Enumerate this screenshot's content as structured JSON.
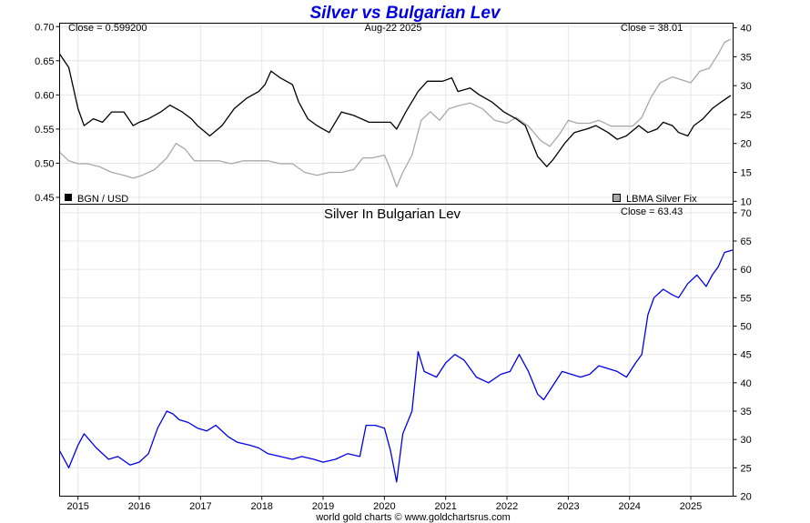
{
  "title": "Silver vs Bulgarian Lev",
  "credit": "world gold charts © www.goldchartsrus.com",
  "chart_data": [
    {
      "type": "line",
      "panel": "top",
      "date_label": "Aug-22  2025",
      "left_close": "Close = 0.599200",
      "right_close": "Close = 38.01",
      "left_legend": "BGN / USD",
      "right_legend": "LBMA Silver Fix",
      "left_axis": {
        "ylim": [
          0.44,
          0.705
        ],
        "ticks": [
          0.45,
          0.5,
          0.55,
          0.6,
          0.65,
          0.7
        ],
        "tick_labels": [
          "0.45",
          "0.50",
          "0.55",
          "0.60",
          "0.65",
          "0.70"
        ]
      },
      "right_axis": {
        "ylim": [
          9.5,
          40.8
        ],
        "ticks": [
          10,
          15,
          20,
          25,
          30,
          35,
          40
        ],
        "tick_labels": [
          "10",
          "15",
          "20",
          "25",
          "30",
          "35",
          "40"
        ]
      },
      "x_range": [
        2014.7,
        2025.69
      ],
      "x_ticks": [
        2015,
        2016,
        2017,
        2018,
        2019,
        2020,
        2021,
        2022,
        2023,
        2024,
        2025
      ],
      "x_tick_labels": [
        "2015",
        "2016",
        "2017",
        "2018",
        "2019",
        "2020",
        "2021",
        "2022",
        "2023",
        "2024",
        "2025"
      ],
      "grid": true,
      "series": [
        {
          "name": "BGN / USD",
          "axis": "left",
          "color": "#000000",
          "x": [
            2014.7,
            2014.85,
            2015.0,
            2015.1,
            2015.25,
            2015.4,
            2015.55,
            2015.75,
            2015.9,
            2016.0,
            2016.15,
            2016.35,
            2016.5,
            2016.7,
            2016.85,
            2016.95,
            2017.15,
            2017.35,
            2017.55,
            2017.75,
            2017.95,
            2018.05,
            2018.15,
            2018.3,
            2018.5,
            2018.6,
            2018.75,
            2018.9,
            2019.0,
            2019.1,
            2019.3,
            2019.5,
            2019.75,
            2019.95,
            2020.1,
            2020.2,
            2020.35,
            2020.55,
            2020.7,
            2020.95,
            2021.1,
            2021.2,
            2021.4,
            2021.55,
            2021.75,
            2021.95,
            2022.15,
            2022.3,
            2022.5,
            2022.65,
            2022.75,
            2022.95,
            2023.1,
            2023.3,
            2023.45,
            2023.65,
            2023.8,
            2023.95,
            2024.15,
            2024.3,
            2024.45,
            2024.55,
            2024.7,
            2024.8,
            2024.95,
            2025.05,
            2025.2,
            2025.35,
            2025.5,
            2025.65
          ],
          "y": [
            0.66,
            0.64,
            0.58,
            0.555,
            0.565,
            0.56,
            0.575,
            0.575,
            0.555,
            0.56,
            0.565,
            0.575,
            0.585,
            0.575,
            0.565,
            0.555,
            0.54,
            0.555,
            0.58,
            0.595,
            0.605,
            0.615,
            0.635,
            0.625,
            0.615,
            0.59,
            0.565,
            0.555,
            0.55,
            0.545,
            0.575,
            0.57,
            0.56,
            0.56,
            0.56,
            0.55,
            0.575,
            0.605,
            0.62,
            0.62,
            0.625,
            0.605,
            0.61,
            0.6,
            0.59,
            0.575,
            0.565,
            0.555,
            0.51,
            0.495,
            0.505,
            0.53,
            0.545,
            0.55,
            0.555,
            0.545,
            0.535,
            0.54,
            0.555,
            0.545,
            0.55,
            0.56,
            0.555,
            0.545,
            0.54,
            0.555,
            0.565,
            0.58,
            0.59,
            0.599
          ]
        },
        {
          "name": "LBMA Silver Fix",
          "axis": "right",
          "color": "#a8a8a8",
          "x": [
            2014.7,
            2014.85,
            2015.0,
            2015.15,
            2015.35,
            2015.55,
            2015.75,
            2015.9,
            2016.05,
            2016.25,
            2016.45,
            2016.6,
            2016.75,
            2016.9,
            2017.1,
            2017.3,
            2017.5,
            2017.7,
            2017.9,
            2018.1,
            2018.3,
            2018.5,
            2018.7,
            2018.9,
            2019.1,
            2019.3,
            2019.5,
            2019.65,
            2019.8,
            2020.0,
            2020.1,
            2020.2,
            2020.3,
            2020.45,
            2020.6,
            2020.75,
            2020.9,
            2021.05,
            2021.2,
            2021.4,
            2021.6,
            2021.8,
            2022.0,
            2022.15,
            2022.35,
            2022.55,
            2022.7,
            2022.85,
            2023.0,
            2023.15,
            2023.35,
            2023.5,
            2023.7,
            2023.9,
            2024.05,
            2024.2,
            2024.35,
            2024.5,
            2024.7,
            2024.85,
            2025.0,
            2025.15,
            2025.3,
            2025.45,
            2025.55,
            2025.65
          ],
          "y": [
            18.5,
            17.0,
            16.5,
            16.5,
            16.0,
            15.0,
            14.5,
            14.0,
            14.5,
            15.5,
            17.5,
            20.0,
            19.0,
            17.0,
            17.0,
            17.0,
            16.5,
            17.0,
            17.0,
            17.0,
            16.5,
            16.5,
            15.0,
            14.5,
            15.0,
            15.0,
            15.5,
            17.5,
            17.5,
            18.0,
            15.5,
            12.5,
            15.0,
            18.0,
            24.0,
            25.5,
            24.0,
            26.0,
            26.5,
            27.0,
            26.0,
            24.0,
            23.5,
            24.5,
            23.0,
            20.5,
            19.5,
            21.5,
            24.0,
            23.5,
            23.5,
            24.0,
            23.0,
            23.0,
            23.0,
            24.5,
            28.0,
            30.5,
            31.5,
            31.0,
            30.5,
            32.5,
            33.0,
            35.5,
            37.5,
            38.01
          ]
        }
      ]
    },
    {
      "type": "line",
      "panel": "bottom",
      "title": "Silver In Bulgarian Lev",
      "right_close": "Close = 63.43",
      "right_axis": {
        "ylim": [
          20,
          71.5
        ],
        "ticks": [
          20,
          25,
          30,
          35,
          40,
          45,
          50,
          55,
          60,
          65,
          70
        ],
        "tick_labels": [
          "20",
          "25",
          "30",
          "35",
          "40",
          "45",
          "50",
          "55",
          "60",
          "65",
          "70"
        ]
      },
      "x_range": [
        2014.7,
        2025.69
      ],
      "grid": true,
      "series": [
        {
          "name": "Silver In Bulgarian Lev",
          "color": "#0000e6",
          "x": [
            2014.7,
            2014.85,
            2015.0,
            2015.1,
            2015.3,
            2015.5,
            2015.65,
            2015.85,
            2016.0,
            2016.15,
            2016.3,
            2016.45,
            2016.55,
            2016.65,
            2016.8,
            2016.95,
            2017.1,
            2017.25,
            2017.45,
            2017.6,
            2017.8,
            2017.95,
            2018.1,
            2018.3,
            2018.5,
            2018.65,
            2018.85,
            2019.0,
            2019.2,
            2019.4,
            2019.6,
            2019.7,
            2019.85,
            2020.0,
            2020.1,
            2020.2,
            2020.3,
            2020.45,
            2020.55,
            2020.65,
            2020.85,
            2021.0,
            2021.15,
            2021.3,
            2021.5,
            2021.7,
            2021.9,
            2022.05,
            2022.2,
            2022.35,
            2022.5,
            2022.6,
            2022.75,
            2022.9,
            2023.05,
            2023.2,
            2023.35,
            2023.5,
            2023.65,
            2023.8,
            2023.95,
            2024.1,
            2024.2,
            2024.3,
            2024.4,
            2024.55,
            2024.7,
            2024.8,
            2024.95,
            2025.1,
            2025.25,
            2025.35,
            2025.45,
            2025.55,
            2025.69
          ],
          "y": [
            28.0,
            25.0,
            29.0,
            31.0,
            28.5,
            26.5,
            27.0,
            25.5,
            26.0,
            27.5,
            32.0,
            35.0,
            34.5,
            33.5,
            33.0,
            32.0,
            31.5,
            32.5,
            30.5,
            29.5,
            29.0,
            28.5,
            27.5,
            27.0,
            26.5,
            27.0,
            26.5,
            26.0,
            26.5,
            27.5,
            27.0,
            32.5,
            32.5,
            32.0,
            28.0,
            22.5,
            31.0,
            35.0,
            45.5,
            42.0,
            41.0,
            43.5,
            45.0,
            44.0,
            41.0,
            40.0,
            41.5,
            42.0,
            45.0,
            42.0,
            38.0,
            37.0,
            39.5,
            42.0,
            41.5,
            41.0,
            41.5,
            43.0,
            42.5,
            42.0,
            41.0,
            43.5,
            45.0,
            52.0,
            55.0,
            56.5,
            55.5,
            55.0,
            57.5,
            59.0,
            57.0,
            59.0,
            60.5,
            63.0,
            63.43
          ]
        }
      ]
    }
  ]
}
